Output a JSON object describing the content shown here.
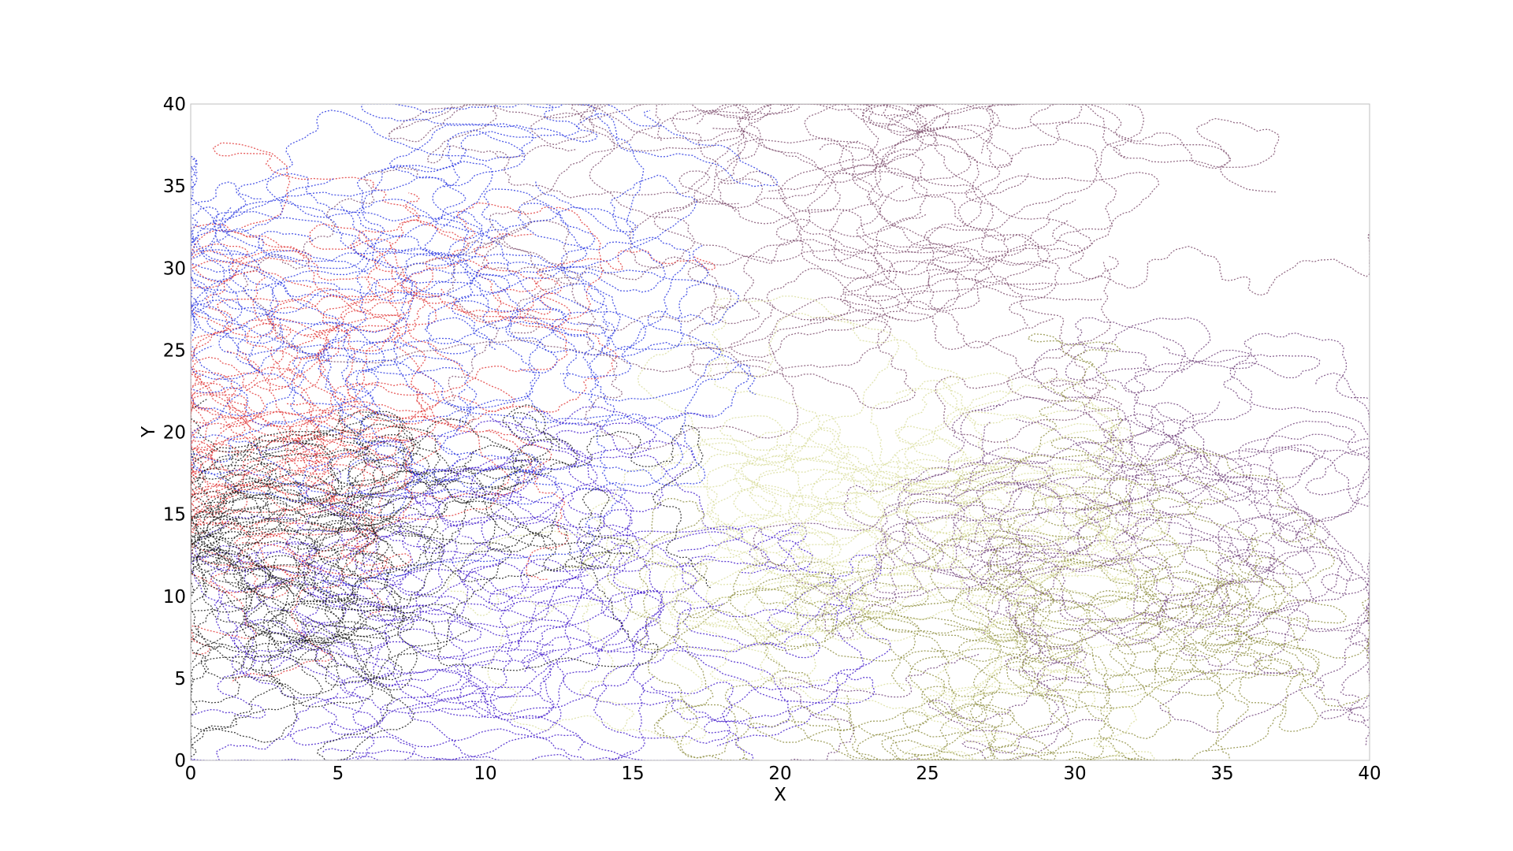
{
  "chart_data": {
    "type": "line",
    "title": "",
    "xlabel": "X",
    "ylabel": "Y",
    "xlim": [
      0,
      40
    ],
    "ylim": [
      0,
      40
    ],
    "xticks": [
      "0",
      "5",
      "10",
      "15",
      "20",
      "25",
      "30",
      "35",
      "40"
    ],
    "yticks": [
      "0",
      "5",
      "10",
      "15",
      "20",
      "25",
      "30",
      "35",
      "40"
    ],
    "grid": false,
    "legend": "none",
    "description_of_series": "dense overlapping random-walk trajectories drawn as dotted/dashed lines",
    "series": [
      {
        "color": "#3a10c8",
        "region_center": [
          11,
          10
        ],
        "spread": [
          6,
          6
        ]
      },
      {
        "color": "#7a4a6a",
        "region_center": [
          22,
          33
        ],
        "spread": [
          16,
          6
        ]
      },
      {
        "color": "#6e3f78",
        "region_center": [
          33,
          14
        ],
        "spread": [
          7,
          10
        ]
      },
      {
        "color": "#8a8a3a",
        "region_center": [
          28,
          7
        ],
        "spread": [
          8,
          5
        ]
      },
      {
        "color": "#d8dc9a",
        "region_center": [
          24,
          14
        ],
        "spread": [
          7,
          7
        ]
      },
      {
        "color": "#e03030",
        "region_center": [
          2,
          20
        ],
        "spread": [
          2,
          8
        ]
      },
      {
        "color": "#111111",
        "region_center": [
          3,
          12
        ],
        "spread": [
          3,
          8
        ]
      },
      {
        "color": "#2030e0",
        "region_center": [
          7,
          28
        ],
        "spread": [
          6,
          8
        ]
      }
    ]
  }
}
